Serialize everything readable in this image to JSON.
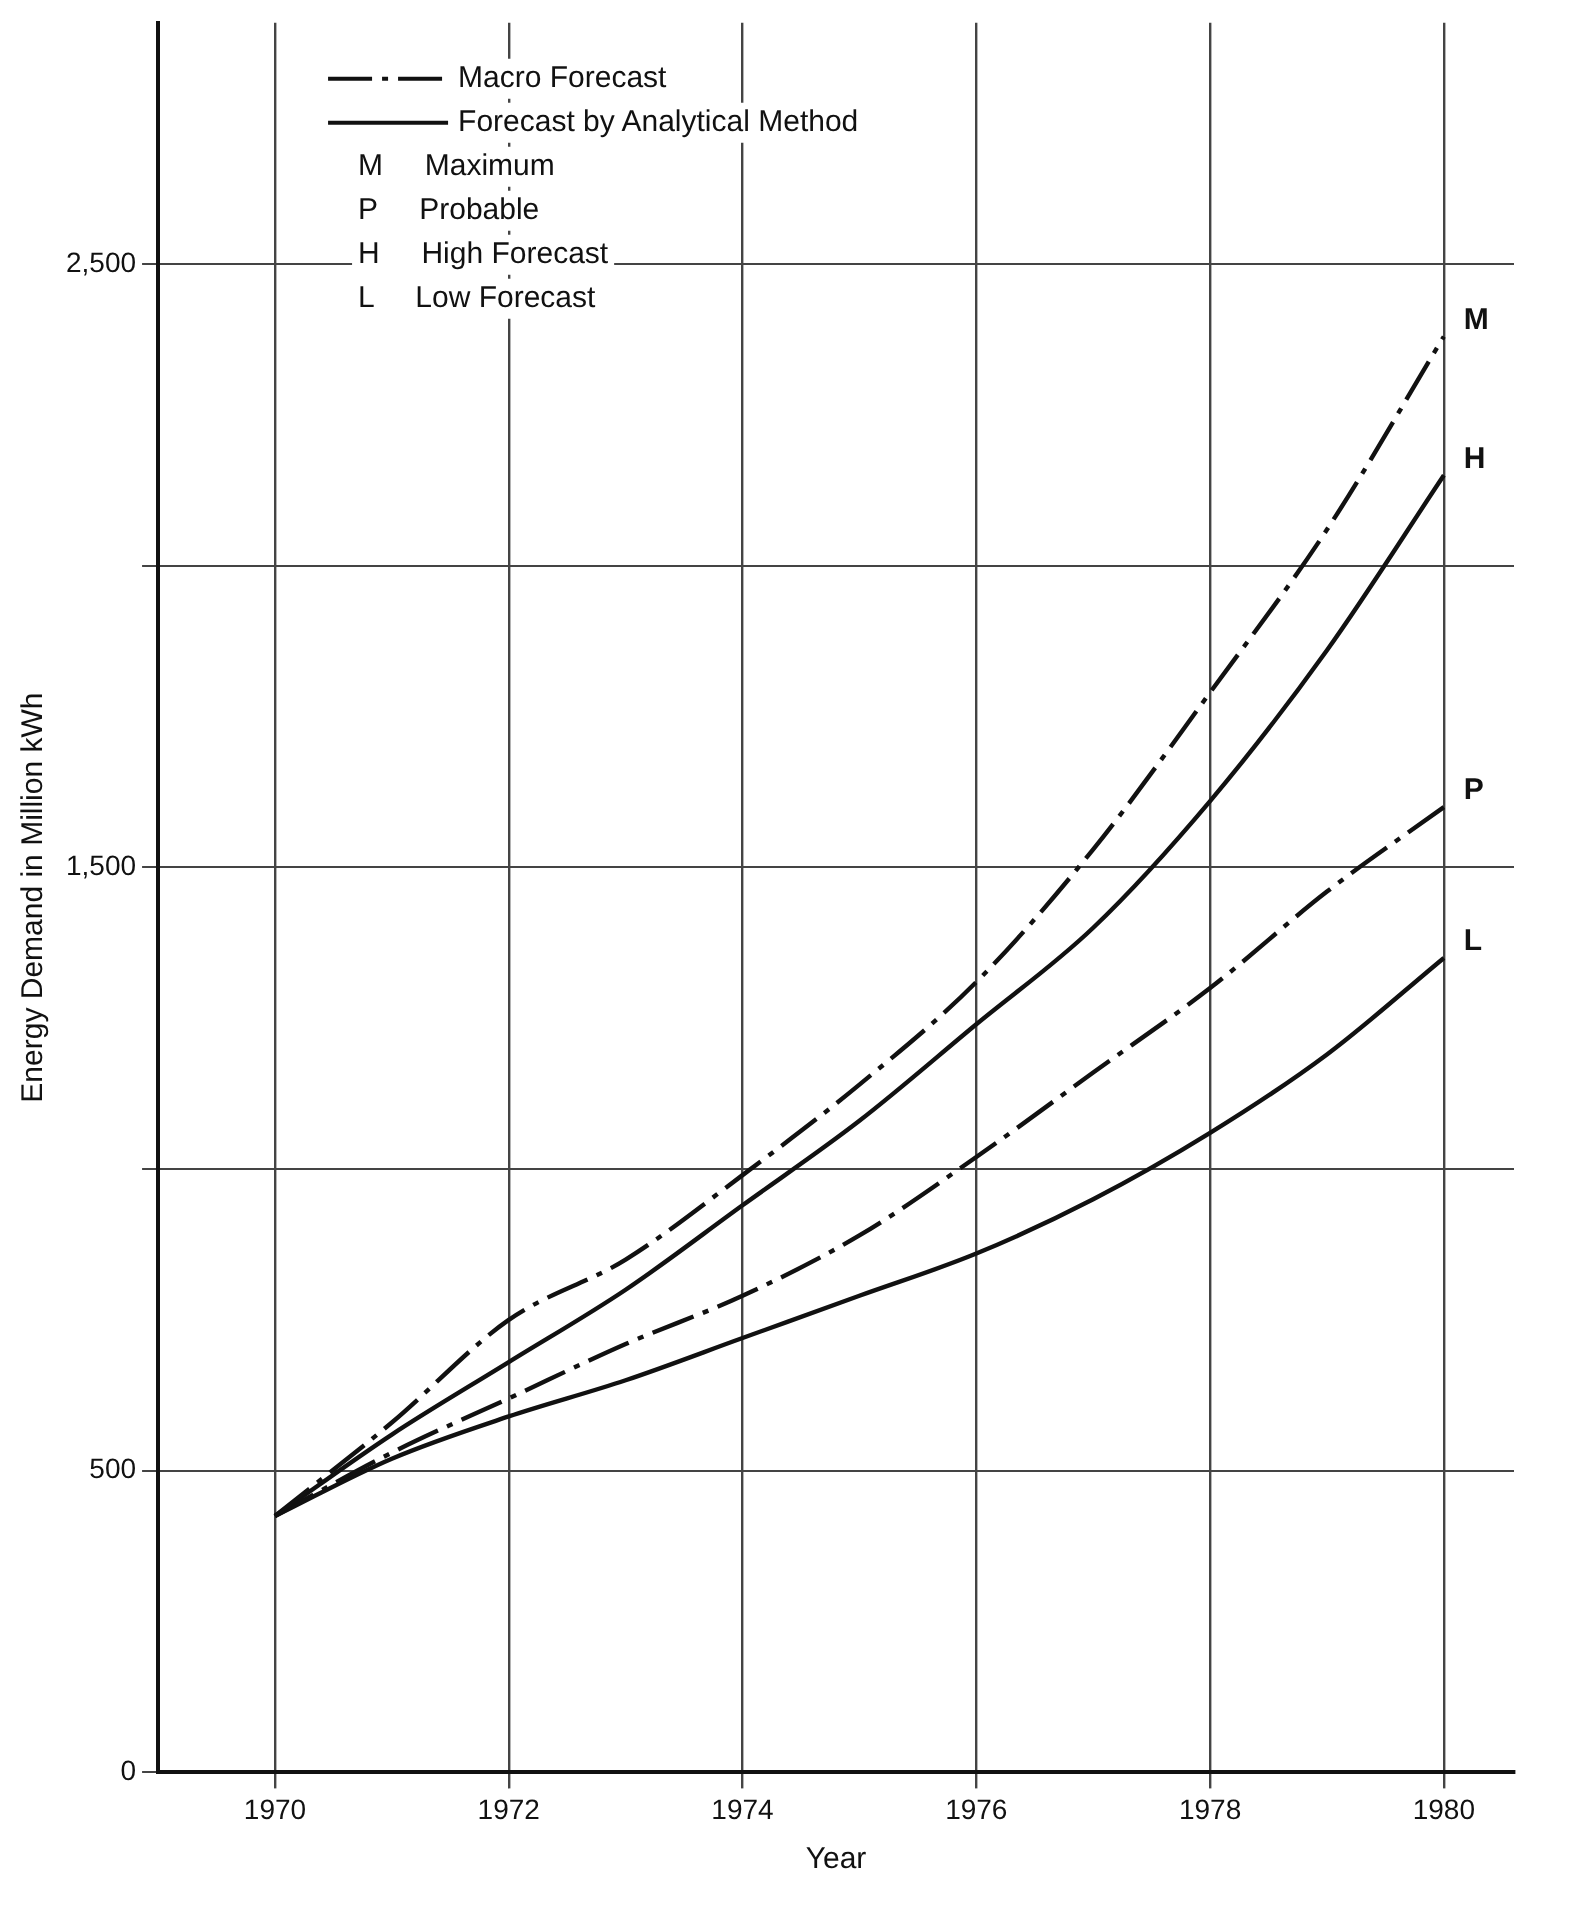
{
  "chart_data": {
    "type": "line",
    "xlabel": "Year",
    "ylabel": "Energy Demand in Million kWh",
    "x": [
      1970,
      1971,
      1972,
      1973,
      1974,
      1975,
      1976,
      1977,
      1978,
      1979,
      1980
    ],
    "series": [
      {
        "name": "M",
        "color": "#111111",
        "line_style": "dashed",
        "values": [
          425,
          580,
          750,
          850,
          990,
          1140,
          1310,
          1530,
          1790,
          2060,
          2380
        ]
      },
      {
        "name": "H",
        "color": "#111111",
        "line_style": "solid",
        "values": [
          425,
          560,
          680,
          800,
          940,
          1080,
          1240,
          1400,
          1610,
          1860,
          2150
        ]
      },
      {
        "name": "P",
        "color": "#111111",
        "line_style": "dashed",
        "values": [
          425,
          530,
          620,
          710,
          790,
          890,
          1020,
          1160,
          1300,
          1460,
          1600
        ]
      },
      {
        "name": "L",
        "color": "#111111",
        "line_style": "solid",
        "values": [
          425,
          520,
          590,
          650,
          720,
          790,
          860,
          950,
          1060,
          1190,
          1350
        ]
      }
    ],
    "xlim": [
      1969,
      1980.6
    ],
    "xticks": [
      1970,
      1972,
      1974,
      1976,
      1978,
      1980
    ],
    "ylim": [
      0,
      2900
    ],
    "yticks": [
      0,
      500,
      {
        "value": 1000,
        "label": null
      },
      {
        "value": 1500,
        "label": "1,500"
      },
      {
        "value": 2000,
        "label": null
      },
      {
        "value": 2500,
        "label": "2,500"
      }
    ],
    "grid": true,
    "legend": false,
    "marker": "none",
    "annotations": [
      "Macro Forecast",
      "Forecast by Analytical Method",
      "M     Maximum",
      "P     Probable",
      "H     High Forecast",
      "L     Low Forecast"
    ]
  }
}
